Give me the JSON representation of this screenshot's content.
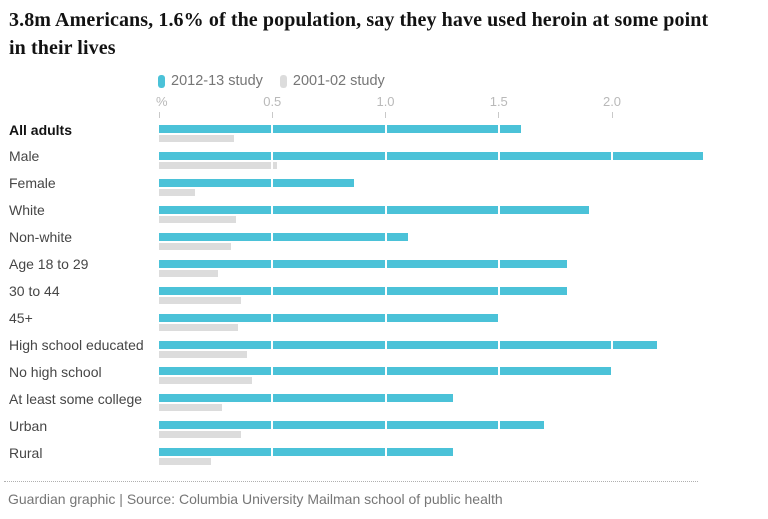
{
  "header": {
    "title": "3.8m Americans, 1.6% of the population, say they have used heroin at some point in their lives"
  },
  "legend": {
    "items": [
      {
        "label": "2012-13 study",
        "color": "#4bc2d8"
      },
      {
        "label": "2001-02 study",
        "color": "#dcdcdc"
      }
    ]
  },
  "axis": {
    "unit_label": "%",
    "tick_labels": [
      "0.5",
      "1.0",
      "1.5",
      "2.0"
    ],
    "tick_values": [
      0.5,
      1.0,
      1.5,
      2.0
    ]
  },
  "footer": {
    "credit": "Guardian graphic | Source: Columbia University Mailman school of public health"
  },
  "chart_data": {
    "type": "bar",
    "orientation": "horizontal",
    "title": "3.8m Americans, 1.6% of the population, say they have used heroin at some point in their lives",
    "xlabel": "%",
    "ylabel": "",
    "xlim": [
      0,
      2.69
    ],
    "ticks": [
      0.5,
      1.0,
      1.5,
      2.0
    ],
    "grid": "white-gridlines-over-bars",
    "legend_position": "top",
    "categories": [
      "All adults",
      "Male",
      "Female",
      "White",
      "Non-white",
      "Age 18 to 29",
      "30 to 44",
      "45+",
      "High school educated",
      "No high school",
      "At least some college",
      "Urban",
      "Rural"
    ],
    "bold_categories": [
      "All adults"
    ],
    "series": [
      {
        "name": "2012-13 study",
        "color": "#4bc2d8",
        "values": [
          1.6,
          2.4,
          0.86,
          1.9,
          1.1,
          1.8,
          1.8,
          1.5,
          2.2,
          2.0,
          1.3,
          1.7,
          1.3
        ]
      },
      {
        "name": "2001-02 study",
        "color": "#dcdcdc",
        "values": [
          0.33,
          0.52,
          0.16,
          0.34,
          0.32,
          0.26,
          0.36,
          0.35,
          0.39,
          0.41,
          0.28,
          0.36,
          0.23
        ]
      }
    ]
  }
}
